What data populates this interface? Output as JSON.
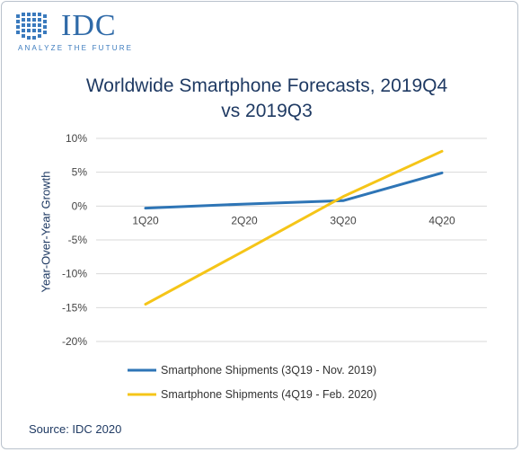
{
  "brand": {
    "name": "IDC",
    "tagline": "ANALYZE THE FUTURE"
  },
  "chart_data": {
    "type": "line",
    "title": "Worldwide Smartphone Forecasts, 2019Q4 vs 2019Q3",
    "title_line1": "Worldwide Smartphone Forecasts, 2019Q4",
    "title_line2": "vs 2019Q3",
    "ylabel": "Year-Over-Year Growth",
    "xlabel": "",
    "categories": [
      "1Q20",
      "2Q20",
      "3Q20",
      "4Q20"
    ],
    "ylim": [
      -20,
      10
    ],
    "yticks": [
      10,
      5,
      0,
      -5,
      -10,
      -15,
      -20
    ],
    "ytick_labels": [
      "10%",
      "5%",
      "0%",
      "-5%",
      "-10%",
      "-15%",
      "-20%"
    ],
    "grid": true,
    "legend_position": "bottom",
    "series": [
      {
        "name": "Smartphone Shipments (3Q19 - Nov. 2019)",
        "color": "#2e75b6",
        "values": [
          -0.3,
          0.3,
          0.8,
          4.9
        ]
      },
      {
        "name": "Smartphone Shipments (4Q19 - Feb. 2020)",
        "color": "#f5c518",
        "values": [
          -14.5,
          -6.6,
          1.4,
          8.1
        ]
      }
    ]
  },
  "source": "Source: IDC 2020"
}
